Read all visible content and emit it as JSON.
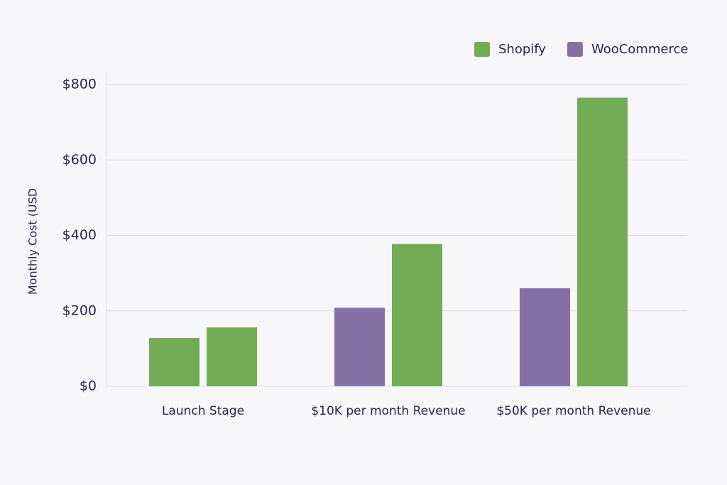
{
  "chart_data": {
    "type": "bar",
    "y_label": "Monthly Cost (USD",
    "categories": [
      "Launch Stage",
      "$10K per month Revenue",
      "$50K per month Revenue"
    ],
    "series": [
      {
        "name": "WooCommerce",
        "color": "#8472a6",
        "point_colors": [
          "#72ad55",
          "#8472a6",
          "#8472a6"
        ],
        "values": [
          128,
          208,
          260
        ]
      },
      {
        "name": "Shopify",
        "color": "#72ad55",
        "values": [
          156,
          377,
          765
        ]
      }
    ],
    "ylim": [
      0,
      800
    ],
    "yticks": [
      {
        "value": 0,
        "label": "$0"
      },
      {
        "value": 200,
        "label": "$200"
      },
      {
        "value": 400,
        "label": "$400"
      },
      {
        "value": 600,
        "label": "$600"
      },
      {
        "value": 800,
        "label": "$800"
      }
    ],
    "grid": true,
    "legend": "top-right"
  }
}
